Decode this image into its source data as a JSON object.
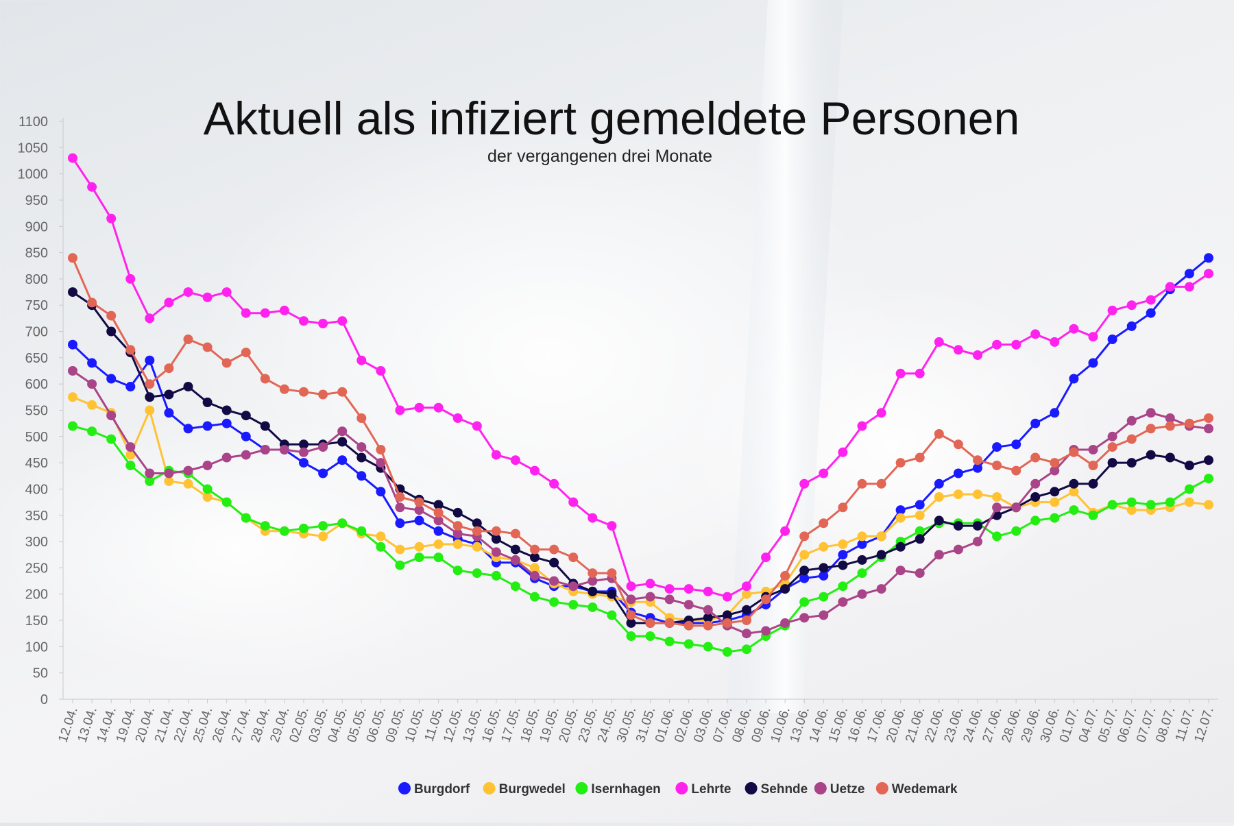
{
  "chart_data": {
    "type": "line",
    "title": "Aktuell als infiziert gemeldete Personen",
    "subtitle": "der vergangenen drei Monate",
    "xlabel": "",
    "ylabel": "",
    "ylim": [
      0,
      1100
    ],
    "yticks": [
      "0",
      "50",
      "100",
      "150",
      "200",
      "250",
      "300",
      "350",
      "400",
      "450",
      "500",
      "550",
      "600",
      "650",
      "700",
      "750",
      "800",
      "850",
      "900",
      "950",
      "1000",
      "1050",
      "1100"
    ],
    "grid": false,
    "legend_position": "bottom",
    "categories": [
      "12.04.",
      "13.04.",
      "14.04.",
      "19.04.",
      "20.04.",
      "21.04.",
      "22.04.",
      "25.04.",
      "26.04.",
      "27.04.",
      "28.04.",
      "29.04.",
      "02.05.",
      "03.05.",
      "04.05.",
      "05.05.",
      "06.05.",
      "09.05.",
      "10.05.",
      "11.05.",
      "12.05.",
      "13.05.",
      "16.05.",
      "17.05.",
      "18.05.",
      "19.05.",
      "20.05.",
      "23.05.",
      "24.05.",
      "30.05.",
      "31.05.",
      "01.06.",
      "02.06.",
      "03.06.",
      "07.06.",
      "08.06.",
      "09.06.",
      "10.06.",
      "13.06.",
      "14.06.",
      "15.06.",
      "16.06.",
      "17.06.",
      "20.06.",
      "21.06.",
      "22.06.",
      "23.06.",
      "24.06.",
      "27.06.",
      "28.06.",
      "29.06.",
      "30.06.",
      "01.07.",
      "04.07.",
      "05.07.",
      "06.07.",
      "07.07.",
      "08.07.",
      "11.07.",
      "12.07."
    ],
    "series": [
      {
        "name": "Burgdorf",
        "color": "#1a1aff",
        "values": [
          675,
          640,
          610,
          595,
          645,
          545,
          515,
          520,
          525,
          500,
          475,
          475,
          450,
          430,
          455,
          425,
          395,
          335,
          340,
          320,
          305,
          295,
          260,
          260,
          230,
          215,
          215,
          205,
          205,
          165,
          155,
          145,
          145,
          145,
          150,
          160,
          180,
          210,
          230,
          235,
          275,
          295,
          310,
          360,
          370,
          410,
          430,
          440,
          480,
          485,
          525,
          545,
          610,
          640,
          685,
          710,
          735,
          780,
          810,
          840
        ]
      },
      {
        "name": "Burgwedel",
        "color": "#ffc233",
        "values": [
          575,
          560,
          545,
          465,
          550,
          415,
          410,
          385,
          375,
          345,
          320,
          320,
          315,
          310,
          335,
          315,
          310,
          285,
          290,
          295,
          295,
          290,
          270,
          265,
          250,
          220,
          205,
          200,
          195,
          185,
          185,
          155,
          150,
          150,
          160,
          200,
          205,
          220,
          275,
          290,
          295,
          310,
          310,
          345,
          350,
          385,
          390,
          390,
          385,
          365,
          375,
          375,
          395,
          355,
          370,
          360,
          360,
          365,
          375,
          370
        ]
      },
      {
        "name": "Isernhagen",
        "color": "#22ee11",
        "values": [
          520,
          510,
          495,
          445,
          415,
          435,
          430,
          400,
          375,
          345,
          330,
          320,
          325,
          330,
          335,
          320,
          290,
          255,
          270,
          270,
          245,
          240,
          235,
          215,
          195,
          185,
          180,
          175,
          160,
          120,
          120,
          110,
          105,
          100,
          90,
          95,
          120,
          140,
          185,
          195,
          215,
          240,
          270,
          300,
          320,
          335,
          335,
          335,
          310,
          320,
          340,
          345,
          360,
          350,
          370,
          375,
          370,
          375,
          400,
          420
        ]
      },
      {
        "name": "Lehrte",
        "color": "#ff22ee",
        "values": [
          1030,
          975,
          915,
          800,
          725,
          755,
          775,
          765,
          775,
          735,
          735,
          740,
          720,
          715,
          720,
          645,
          625,
          550,
          555,
          555,
          535,
          520,
          465,
          455,
          435,
          410,
          375,
          345,
          330,
          215,
          220,
          210,
          210,
          205,
          195,
          215,
          270,
          320,
          410,
          430,
          470,
          520,
          545,
          620,
          620,
          680,
          665,
          655,
          675,
          675,
          695,
          680,
          705,
          690,
          740,
          750,
          760,
          785,
          785,
          810
        ]
      },
      {
        "name": "Sehnde",
        "color": "#120a44",
        "values": [
          775,
          750,
          700,
          660,
          575,
          580,
          595,
          565,
          550,
          540,
          520,
          485,
          485,
          485,
          490,
          460,
          440,
          400,
          380,
          370,
          355,
          335,
          305,
          285,
          270,
          260,
          220,
          205,
          200,
          145,
          145,
          145,
          150,
          155,
          160,
          170,
          195,
          210,
          245,
          250,
          255,
          265,
          275,
          290,
          305,
          340,
          330,
          330,
          350,
          365,
          385,
          395,
          410,
          410,
          450,
          450,
          465,
          460,
          445,
          455
        ]
      },
      {
        "name": "Uetze",
        "color": "#aa4488",
        "values": [
          625,
          600,
          540,
          480,
          430,
          430,
          435,
          445,
          460,
          465,
          475,
          475,
          470,
          480,
          510,
          480,
          450,
          365,
          360,
          340,
          315,
          310,
          280,
          265,
          235,
          225,
          215,
          225,
          230,
          190,
          195,
          190,
          180,
          170,
          140,
          125,
          130,
          145,
          155,
          160,
          185,
          200,
          210,
          245,
          240,
          275,
          285,
          300,
          365,
          365,
          410,
          435,
          475,
          475,
          500,
          530,
          545,
          535,
          520,
          515
        ]
      },
      {
        "name": "Wedemark",
        "color": "#e26655",
        "values": [
          840,
          755,
          730,
          665,
          600,
          630,
          685,
          670,
          640,
          660,
          610,
          590,
          585,
          580,
          585,
          535,
          475,
          385,
          375,
          355,
          330,
          320,
          320,
          315,
          285,
          285,
          270,
          240,
          240,
          160,
          145,
          145,
          140,
          140,
          145,
          150,
          190,
          235,
          310,
          335,
          365,
          410,
          410,
          450,
          460,
          505,
          485,
          455,
          445,
          435,
          460,
          450,
          470,
          445,
          480,
          495,
          515,
          520,
          525,
          535
        ]
      }
    ]
  }
}
